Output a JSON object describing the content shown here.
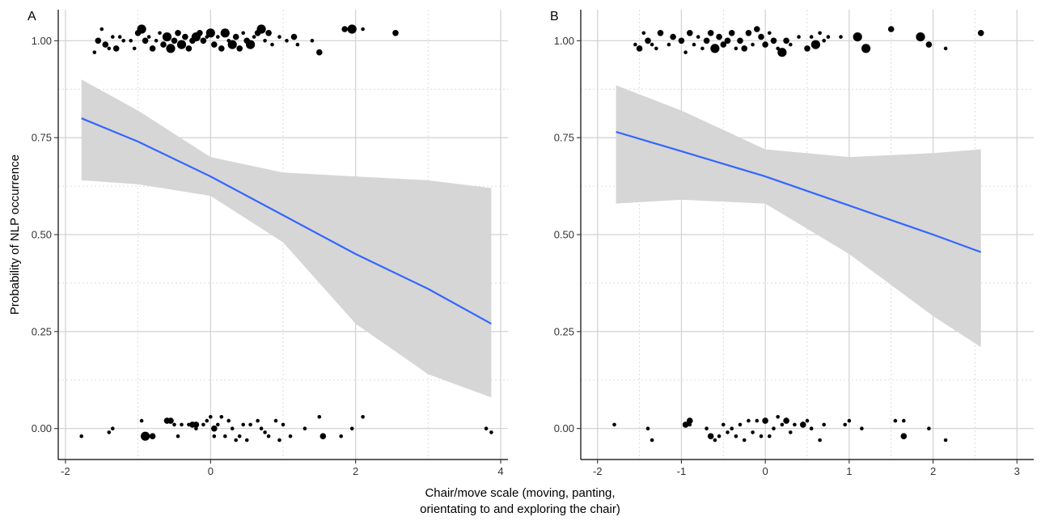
{
  "figure": {
    "ylabel": "Probability of NLP occurrence",
    "xlabel_line1": "Chair/move scale (moving, panting,",
    "xlabel_line2": "orientating to and exploring the chair)"
  },
  "colors": {
    "fit_line": "#3366ff",
    "ribbon": "#d6d6d6",
    "points": "#000000",
    "grid_major": "#d4d4d4",
    "grid_minor": "#dcdcdc"
  },
  "chart_data": [
    {
      "type": "scatter",
      "panel": "A",
      "xlim": [
        -2.1,
        4.1
      ],
      "ylim": [
        -0.08,
        1.08
      ],
      "x_ticks": [
        -2,
        0,
        2,
        4
      ],
      "x_tick_labels": [
        "-2",
        "0",
        "2",
        "4"
      ],
      "y_ticks": [
        0,
        0.25,
        0.5,
        0.75,
        1
      ],
      "y_tick_labels": [
        "0.00",
        "0.25",
        "0.50",
        "0.75",
        "1.00"
      ],
      "grid": "major solid, minor dotted",
      "fit": {
        "x": [
          -1.78,
          -1.0,
          0.0,
          1.0,
          2.0,
          3.0,
          3.87
        ],
        "y": [
          0.8,
          0.74,
          0.65,
          0.55,
          0.45,
          0.36,
          0.27
        ],
        "lower": [
          0.64,
          0.63,
          0.6,
          0.48,
          0.27,
          0.14,
          0.08
        ],
        "upper": [
          0.9,
          0.82,
          0.7,
          0.66,
          0.65,
          0.64,
          0.62
        ]
      },
      "points_top": [
        [
          -1.6,
          0.97,
          1
        ],
        [
          -1.55,
          1.0,
          2
        ],
        [
          -1.5,
          1.03,
          1
        ],
        [
          -1.45,
          0.99,
          2
        ],
        [
          -1.4,
          0.98,
          1
        ],
        [
          -1.35,
          1.01,
          1
        ],
        [
          -1.3,
          0.98,
          2
        ],
        [
          -1.25,
          1.01,
          1
        ],
        [
          -1.2,
          1.0,
          1
        ],
        [
          -1.1,
          1.0,
          1
        ],
        [
          -1.05,
          0.98,
          1
        ],
        [
          -1.0,
          1.02,
          2
        ],
        [
          -0.95,
          1.03,
          3
        ],
        [
          -0.9,
          1.0,
          2
        ],
        [
          -0.85,
          1.01,
          1
        ],
        [
          -0.8,
          0.98,
          2
        ],
        [
          -0.75,
          1.0,
          1
        ],
        [
          -0.7,
          1.02,
          1
        ],
        [
          -0.65,
          0.99,
          2
        ],
        [
          -0.6,
          1.01,
          3
        ],
        [
          -0.55,
          0.98,
          3
        ],
        [
          -0.5,
          1.0,
          2
        ],
        [
          -0.45,
          1.02,
          2
        ],
        [
          -0.4,
          0.99,
          3
        ],
        [
          -0.35,
          1.01,
          2
        ],
        [
          -0.3,
          0.98,
          2
        ],
        [
          -0.25,
          1.0,
          2
        ],
        [
          -0.2,
          1.01,
          3
        ],
        [
          -0.15,
          1.02,
          2
        ],
        [
          -0.1,
          1.0,
          2
        ],
        [
          -0.05,
          1.01,
          1
        ],
        [
          0.0,
          1.02,
          3
        ],
        [
          0.05,
          0.99,
          2
        ],
        [
          0.1,
          1.01,
          1
        ],
        [
          0.15,
          0.98,
          2
        ],
        [
          0.2,
          1.02,
          3
        ],
        [
          0.25,
          1.0,
          1
        ],
        [
          0.3,
          0.99,
          3
        ],
        [
          0.35,
          1.01,
          2
        ],
        [
          0.4,
          0.98,
          2
        ],
        [
          0.45,
          1.02,
          1
        ],
        [
          0.5,
          1.0,
          2
        ],
        [
          0.55,
          0.99,
          3
        ],
        [
          0.6,
          1.01,
          1
        ],
        [
          0.65,
          1.02,
          2
        ],
        [
          0.7,
          1.03,
          3
        ],
        [
          0.75,
          1.0,
          1
        ],
        [
          0.8,
          1.02,
          2
        ],
        [
          0.85,
          0.99,
          1
        ],
        [
          0.95,
          1.01,
          1
        ],
        [
          1.05,
          1.0,
          1
        ],
        [
          1.15,
          1.01,
          2
        ],
        [
          1.2,
          0.99,
          1
        ],
        [
          1.4,
          1.0,
          1
        ],
        [
          1.5,
          0.97,
          2
        ],
        [
          1.85,
          1.03,
          2
        ],
        [
          1.95,
          1.03,
          3
        ],
        [
          2.1,
          1.03,
          1
        ],
        [
          2.55,
          1.02,
          2
        ]
      ],
      "points_bottom": [
        [
          -1.78,
          -0.02,
          1
        ],
        [
          -1.4,
          -0.01,
          1
        ],
        [
          -1.35,
          0.0,
          1
        ],
        [
          -0.95,
          0.02,
          1
        ],
        [
          -0.9,
          -0.02,
          3
        ],
        [
          -0.8,
          -0.02,
          2
        ],
        [
          -0.6,
          0.02,
          2
        ],
        [
          -0.55,
          0.02,
          2
        ],
        [
          -0.5,
          0.01,
          1
        ],
        [
          -0.45,
          -0.02,
          1
        ],
        [
          -0.4,
          0.01,
          1
        ],
        [
          -0.3,
          0.01,
          1
        ],
        [
          -0.25,
          0.01,
          2
        ],
        [
          -0.2,
          0.01,
          2
        ],
        [
          -0.2,
          0.0,
          1
        ],
        [
          -0.1,
          0.01,
          1
        ],
        [
          -0.05,
          0.02,
          1
        ],
        [
          0.0,
          0.03,
          1
        ],
        [
          0.05,
          0.0,
          2
        ],
        [
          0.05,
          -0.02,
          1
        ],
        [
          0.1,
          0.01,
          1
        ],
        [
          0.15,
          0.03,
          1
        ],
        [
          0.2,
          -0.02,
          1
        ],
        [
          0.25,
          0.02,
          1
        ],
        [
          0.3,
          0.0,
          1
        ],
        [
          0.35,
          -0.03,
          1
        ],
        [
          0.4,
          -0.02,
          1
        ],
        [
          0.45,
          0.01,
          1
        ],
        [
          0.5,
          -0.03,
          1
        ],
        [
          0.55,
          0.01,
          1
        ],
        [
          0.65,
          0.02,
          1
        ],
        [
          0.7,
          0.0,
          1
        ],
        [
          0.75,
          -0.01,
          1
        ],
        [
          0.8,
          -0.02,
          1
        ],
        [
          0.9,
          0.02,
          1
        ],
        [
          0.95,
          -0.03,
          1
        ],
        [
          1.0,
          0.01,
          1
        ],
        [
          1.1,
          -0.02,
          1
        ],
        [
          1.3,
          0.0,
          1
        ],
        [
          1.5,
          0.03,
          1
        ],
        [
          1.55,
          -0.02,
          2
        ],
        [
          1.8,
          -0.02,
          1
        ],
        [
          1.95,
          0.0,
          1
        ],
        [
          2.1,
          0.03,
          1
        ],
        [
          3.8,
          0.0,
          1
        ],
        [
          3.87,
          -0.01,
          1
        ]
      ]
    },
    {
      "type": "scatter",
      "panel": "B",
      "xlim": [
        -2.2,
        3.2
      ],
      "ylim": [
        -0.08,
        1.08
      ],
      "x_ticks": [
        -2,
        -1,
        0,
        1,
        2,
        3
      ],
      "x_tick_labels": [
        "-2",
        "-1",
        "0",
        "1",
        "2",
        "3"
      ],
      "y_ticks": [
        0,
        0.25,
        0.5,
        0.75,
        1
      ],
      "y_tick_labels": [
        "0.00",
        "0.25",
        "0.50",
        "0.75",
        "1.00"
      ],
      "grid": "major solid, minor dotted",
      "fit": {
        "x": [
          -1.78,
          -1.0,
          0.0,
          1.0,
          2.0,
          2.57
        ],
        "y": [
          0.765,
          0.715,
          0.65,
          0.575,
          0.5,
          0.455
        ],
        "lower": [
          0.58,
          0.59,
          0.58,
          0.45,
          0.29,
          0.21
        ],
        "upper": [
          0.885,
          0.82,
          0.72,
          0.7,
          0.71,
          0.72
        ]
      },
      "points_top": [
        [
          -1.55,
          0.99,
          1
        ],
        [
          -1.5,
          0.98,
          2
        ],
        [
          -1.45,
          1.02,
          1
        ],
        [
          -1.4,
          1.0,
          2
        ],
        [
          -1.35,
          0.99,
          1
        ],
        [
          -1.3,
          0.98,
          1
        ],
        [
          -1.25,
          1.02,
          2
        ],
        [
          -1.15,
          0.99,
          1
        ],
        [
          -1.1,
          1.01,
          2
        ],
        [
          -1.0,
          1.0,
          2
        ],
        [
          -0.95,
          0.97,
          1
        ],
        [
          -0.9,
          1.02,
          2
        ],
        [
          -0.85,
          0.99,
          1
        ],
        [
          -0.8,
          1.01,
          1
        ],
        [
          -0.75,
          0.98,
          1
        ],
        [
          -0.7,
          1.0,
          2
        ],
        [
          -0.65,
          1.02,
          2
        ],
        [
          -0.6,
          0.98,
          3
        ],
        [
          -0.55,
          1.01,
          2
        ],
        [
          -0.5,
          0.99,
          2
        ],
        [
          -0.45,
          1.0,
          2
        ],
        [
          -0.4,
          1.02,
          2
        ],
        [
          -0.35,
          0.98,
          1
        ],
        [
          -0.3,
          1.0,
          2
        ],
        [
          -0.25,
          0.98,
          2
        ],
        [
          -0.2,
          1.02,
          2
        ],
        [
          -0.15,
          0.99,
          1
        ],
        [
          -0.1,
          1.03,
          2
        ],
        [
          -0.05,
          1.01,
          2
        ],
        [
          0.0,
          0.99,
          2
        ],
        [
          0.05,
          1.02,
          1
        ],
        [
          0.1,
          1.0,
          2
        ],
        [
          0.15,
          0.98,
          1
        ],
        [
          0.2,
          0.97,
          3
        ],
        [
          0.25,
          1.0,
          2
        ],
        [
          0.3,
          0.99,
          1
        ],
        [
          0.4,
          1.01,
          1
        ],
        [
          0.5,
          0.98,
          2
        ],
        [
          0.55,
          1.01,
          1
        ],
        [
          0.6,
          0.99,
          3
        ],
        [
          0.65,
          1.02,
          1
        ],
        [
          0.7,
          1.0,
          1
        ],
        [
          0.75,
          1.01,
          1
        ],
        [
          0.9,
          1.01,
          1
        ],
        [
          1.1,
          1.01,
          3
        ],
        [
          1.2,
          0.98,
          3
        ],
        [
          1.5,
          1.03,
          2
        ],
        [
          1.85,
          1.01,
          3
        ],
        [
          1.95,
          0.99,
          2
        ],
        [
          2.15,
          0.98,
          1
        ],
        [
          2.57,
          1.02,
          2
        ]
      ],
      "points_bottom": [
        [
          -1.8,
          0.01,
          1
        ],
        [
          -1.4,
          0.0,
          1
        ],
        [
          -1.35,
          -0.03,
          1
        ],
        [
          -0.95,
          0.01,
          2
        ],
        [
          -0.9,
          0.02,
          2
        ],
        [
          -0.9,
          0.01,
          1
        ],
        [
          -0.7,
          0.0,
          1
        ],
        [
          -0.65,
          -0.02,
          2
        ],
        [
          -0.6,
          -0.03,
          1
        ],
        [
          -0.55,
          -0.02,
          1
        ],
        [
          -0.5,
          0.01,
          1
        ],
        [
          -0.45,
          -0.01,
          1
        ],
        [
          -0.4,
          0.0,
          1
        ],
        [
          -0.35,
          -0.02,
          1
        ],
        [
          -0.3,
          0.01,
          1
        ],
        [
          -0.25,
          -0.03,
          1
        ],
        [
          -0.2,
          0.02,
          1
        ],
        [
          -0.15,
          -0.01,
          1
        ],
        [
          -0.1,
          0.02,
          1
        ],
        [
          -0.05,
          -0.02,
          1
        ],
        [
          0.0,
          0.02,
          2
        ],
        [
          0.05,
          -0.02,
          1
        ],
        [
          0.1,
          0.0,
          1
        ],
        [
          0.15,
          0.03,
          1
        ],
        [
          0.2,
          0.01,
          1
        ],
        [
          0.25,
          0.02,
          2
        ],
        [
          0.3,
          -0.01,
          1
        ],
        [
          0.35,
          0.01,
          1
        ],
        [
          0.45,
          0.01,
          2
        ],
        [
          0.5,
          0.02,
          1
        ],
        [
          0.55,
          0.0,
          1
        ],
        [
          0.65,
          -0.03,
          1
        ],
        [
          0.7,
          0.01,
          1
        ],
        [
          0.95,
          0.01,
          1
        ],
        [
          1.0,
          0.02,
          1
        ],
        [
          1.15,
          0.0,
          1
        ],
        [
          1.55,
          0.02,
          1
        ],
        [
          1.65,
          0.02,
          1
        ],
        [
          1.65,
          -0.02,
          2
        ],
        [
          1.95,
          0.0,
          1
        ],
        [
          2.15,
          -0.03,
          1
        ]
      ]
    }
  ]
}
